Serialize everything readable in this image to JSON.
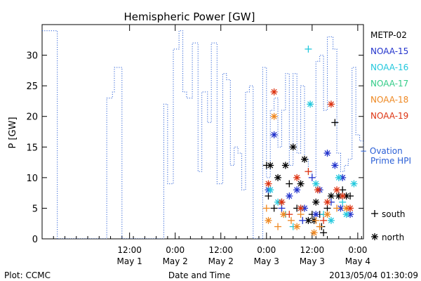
{
  "chart_data": {
    "type": "scatter",
    "title": "Hemispheric Power [GW]",
    "ylabel": "P [GW]",
    "xlabel": "Date and Time",
    "ylim": [
      0,
      35
    ],
    "yticks": [
      0,
      5,
      10,
      15,
      20,
      25,
      30
    ],
    "xlim": [
      "2013-04-30 13:00",
      "2013-05-04 01:30"
    ],
    "xticks": [
      {
        "time": "2013-05-01 12:00",
        "hour": "12:00",
        "date": "May 1"
      },
      {
        "time": "2013-05-02 00:00",
        "hour": "0:00",
        "date": "May 2"
      },
      {
        "time": "2013-05-02 12:00",
        "hour": "12:00",
        "date": "May 2"
      },
      {
        "time": "2013-05-03 00:00",
        "hour": "0:00",
        "date": "May 3"
      },
      {
        "time": "2013-05-03 12:00",
        "hour": "12:00",
        "date": "May 3"
      },
      {
        "time": "2013-05-04 00:00",
        "hour": "0:00",
        "date": "May 4"
      }
    ],
    "legend_position": "right",
    "legend_markers": {
      "south": "+",
      "north": "*"
    },
    "ovation": {
      "name": "− Ovation Prime HPI",
      "color": "#2a5fd6",
      "steps": [
        [
          "2013-04-30 13:00",
          34
        ],
        [
          "2013-04-30 16:00",
          34
        ],
        [
          "2013-04-30 17:00",
          0
        ],
        [
          "2013-05-01 05:00",
          0
        ],
        [
          "2013-05-01 06:00",
          23
        ],
        [
          "2013-05-01 07:30",
          24
        ],
        [
          "2013-05-01 08:00",
          28
        ],
        [
          "2013-05-01 10:00",
          0
        ],
        [
          "2013-05-01 20:00",
          0
        ],
        [
          "2013-05-01 21:00",
          22
        ],
        [
          "2013-05-01 22:00",
          9
        ],
        [
          "2013-05-01 23:30",
          31
        ],
        [
          "2013-05-02 01:00",
          34
        ],
        [
          "2013-05-02 02:00",
          24
        ],
        [
          "2013-05-02 03:00",
          23
        ],
        [
          "2013-05-02 04:30",
          32
        ],
        [
          "2013-05-02 06:00",
          11
        ],
        [
          "2013-05-02 07:00",
          24
        ],
        [
          "2013-05-02 08:30",
          19
        ],
        [
          "2013-05-02 09:30",
          32
        ],
        [
          "2013-05-02 11:00",
          9
        ],
        [
          "2013-05-02 12:30",
          27
        ],
        [
          "2013-05-02 13:30",
          26
        ],
        [
          "2013-05-02 14:30",
          12
        ],
        [
          "2013-05-02 15:30",
          15
        ],
        [
          "2013-05-02 16:30",
          14
        ],
        [
          "2013-05-02 17:30",
          8
        ],
        [
          "2013-05-02 18:30",
          24
        ],
        [
          "2013-05-02 19:30",
          25
        ],
        [
          "2013-05-02 20:30",
          0
        ],
        [
          "2013-05-02 22:00",
          0
        ],
        [
          "2013-05-02 23:00",
          28
        ],
        [
          "2013-05-03 00:00",
          10
        ],
        [
          "2013-05-03 01:00",
          21
        ],
        [
          "2013-05-03 02:00",
          23
        ],
        [
          "2013-05-03 03:00",
          15
        ],
        [
          "2013-05-03 04:00",
          21
        ],
        [
          "2013-05-03 05:00",
          27
        ],
        [
          "2013-05-03 06:00",
          12
        ],
        [
          "2013-05-03 07:00",
          27
        ],
        [
          "2013-05-03 08:00",
          14
        ],
        [
          "2013-05-03 09:00",
          25
        ],
        [
          "2013-05-03 10:00",
          13
        ],
        [
          "2013-05-03 11:00",
          11
        ],
        [
          "2013-05-03 12:00",
          10
        ],
        [
          "2013-05-03 13:00",
          29
        ],
        [
          "2013-05-03 14:00",
          30
        ],
        [
          "2013-05-03 15:00",
          21
        ],
        [
          "2013-05-03 16:00",
          33
        ],
        [
          "2013-05-03 17:30",
          31
        ],
        [
          "2013-05-03 18:30",
          14
        ],
        [
          "2013-05-03 19:30",
          11
        ],
        [
          "2013-05-03 20:30",
          12
        ],
        [
          "2013-05-03 21:30",
          13
        ],
        [
          "2013-05-03 22:30",
          28
        ],
        [
          "2013-05-03 23:30",
          17
        ],
        [
          "2013-05-04 00:30",
          16
        ],
        [
          "2013-05-04 01:30",
          14
        ]
      ]
    },
    "series": [
      {
        "name": "METP-02",
        "color": "#000000",
        "points": [
          [
            "2013-05-03 00:00",
            12,
            "+"
          ],
          [
            "2013-05-03 00:30",
            7,
            "+"
          ],
          [
            "2013-05-03 01:00",
            12,
            "*"
          ],
          [
            "2013-05-03 02:00",
            5,
            "+"
          ],
          [
            "2013-05-03 03:00",
            10,
            "*"
          ],
          [
            "2013-05-03 04:00",
            6,
            "+"
          ],
          [
            "2013-05-03 05:00",
            12,
            "*"
          ],
          [
            "2013-05-03 06:00",
            9,
            "+"
          ],
          [
            "2013-05-03 07:00",
            15,
            "*"
          ],
          [
            "2013-05-03 08:00",
            5,
            "+"
          ],
          [
            "2013-05-03 09:00",
            9,
            "*"
          ],
          [
            "2013-05-03 10:00",
            13,
            "*"
          ],
          [
            "2013-05-03 11:00",
            3,
            "*"
          ],
          [
            "2013-05-03 12:00",
            4,
            "+"
          ],
          [
            "2013-05-03 13:00",
            6,
            "*"
          ],
          [
            "2013-05-03 14:00",
            4,
            "+"
          ],
          [
            "2013-05-03 15:00",
            1,
            "+"
          ],
          [
            "2013-05-03 16:00",
            5,
            "+"
          ],
          [
            "2013-05-03 17:00",
            7,
            "*"
          ],
          [
            "2013-05-03 18:00",
            19,
            "+"
          ],
          [
            "2013-05-03 19:00",
            7,
            "*"
          ],
          [
            "2013-05-03 20:00",
            8,
            "+"
          ],
          [
            "2013-05-03 21:00",
            7,
            "*"
          ],
          [
            "2013-05-03 22:00",
            7,
            "+"
          ],
          [
            "2013-05-03 14:30",
            2,
            "+"
          ],
          [
            "2013-05-03 12:30",
            3,
            "*"
          ]
        ]
      },
      {
        "name": "NOAA-15",
        "color": "#2233cc",
        "points": [
          [
            "2013-05-03 00:30",
            8,
            "*"
          ],
          [
            "2013-05-03 02:00",
            17,
            "*"
          ],
          [
            "2013-05-03 04:00",
            5,
            "+"
          ],
          [
            "2013-05-03 06:00",
            7,
            "*"
          ],
          [
            "2013-05-03 08:00",
            8,
            "*"
          ],
          [
            "2013-05-03 10:00",
            5,
            "*"
          ],
          [
            "2013-05-03 12:00",
            10,
            "+"
          ],
          [
            "2013-05-03 14:00",
            8,
            "*"
          ],
          [
            "2013-05-03 16:00",
            14,
            "*"
          ],
          [
            "2013-05-03 18:00",
            12,
            "*"
          ],
          [
            "2013-05-03 20:00",
            10,
            "*"
          ],
          [
            "2013-05-03 22:00",
            4,
            "*"
          ],
          [
            "2013-05-03 19:30",
            5,
            "*"
          ],
          [
            "2013-05-03 17:00",
            6,
            "+"
          ],
          [
            "2013-05-03 13:00",
            4,
            "*"
          ],
          [
            "2013-05-03 09:30",
            3,
            "+"
          ]
        ]
      },
      {
        "name": "NOAA-16",
        "color": "#22c8dd",
        "points": [
          [
            "2013-05-03 01:00",
            8,
            "*"
          ],
          [
            "2013-05-03 03:00",
            6,
            "*"
          ],
          [
            "2013-05-03 05:00",
            4,
            "+"
          ],
          [
            "2013-05-03 07:00",
            2,
            "+"
          ],
          [
            "2013-05-03 09:00",
            5,
            "*"
          ],
          [
            "2013-05-03 11:00",
            31,
            "+"
          ],
          [
            "2013-05-03 11:30",
            22,
            "*"
          ],
          [
            "2013-05-03 13:00",
            9,
            "*"
          ],
          [
            "2013-05-03 15:00",
            4,
            "+"
          ],
          [
            "2013-05-03 17:00",
            3,
            "*"
          ],
          [
            "2013-05-03 19:00",
            10,
            "*"
          ],
          [
            "2013-05-03 21:00",
            4,
            "*"
          ],
          [
            "2013-05-03 23:00",
            9,
            "*"
          ],
          [
            "2013-05-03 20:00",
            6,
            "+"
          ]
        ]
      },
      {
        "name": "NOAA-17",
        "color": "#33cc88",
        "points": []
      },
      {
        "name": "NOAA-18",
        "color": "#ee8822",
        "points": [
          [
            "2013-05-03 00:00",
            5,
            "+"
          ],
          [
            "2013-05-03 00:30",
            3,
            "*"
          ],
          [
            "2013-05-03 02:00",
            20,
            "*"
          ],
          [
            "2013-05-03 03:00",
            2,
            "+"
          ],
          [
            "2013-05-03 04:30",
            4,
            "*"
          ],
          [
            "2013-05-03 06:30",
            3,
            "+"
          ],
          [
            "2013-05-03 08:00",
            2,
            "*"
          ],
          [
            "2013-05-03 09:00",
            4,
            "+"
          ],
          [
            "2013-05-03 12:30",
            1,
            "*"
          ],
          [
            "2013-05-03 14:00",
            2,
            "+"
          ],
          [
            "2013-05-03 16:00",
            4,
            "*"
          ],
          [
            "2013-05-03 18:30",
            5,
            "+"
          ],
          [
            "2013-05-03 21:00",
            5,
            "*"
          ],
          [
            "2013-05-03 13:00",
            3,
            "+"
          ]
        ]
      },
      {
        "name": "NOAA-19",
        "color": "#dd3311",
        "points": [
          [
            "2013-05-03 00:30",
            9,
            "*"
          ],
          [
            "2013-05-03 02:00",
            24,
            "*"
          ],
          [
            "2013-05-03 04:00",
            6,
            "*"
          ],
          [
            "2013-05-03 06:00",
            4,
            "+"
          ],
          [
            "2013-05-03 08:00",
            10,
            "*"
          ],
          [
            "2013-05-03 09:00",
            5,
            "*"
          ],
          [
            "2013-05-03 11:00",
            11,
            "+"
          ],
          [
            "2013-05-03 13:30",
            8,
            "*"
          ],
          [
            "2013-05-03 16:00",
            6,
            "*"
          ],
          [
            "2013-05-03 17:00",
            22,
            "*"
          ],
          [
            "2013-05-03 18:30",
            8,
            "*"
          ],
          [
            "2013-05-03 20:00",
            7,
            "*"
          ],
          [
            "2013-05-03 22:00",
            5,
            "*"
          ],
          [
            "2013-05-03 15:00",
            3,
            "+"
          ]
        ]
      }
    ]
  },
  "footer": {
    "plot_credit": "Plot: CCMC",
    "timestamp": "2013/05/04 01:30:09"
  }
}
